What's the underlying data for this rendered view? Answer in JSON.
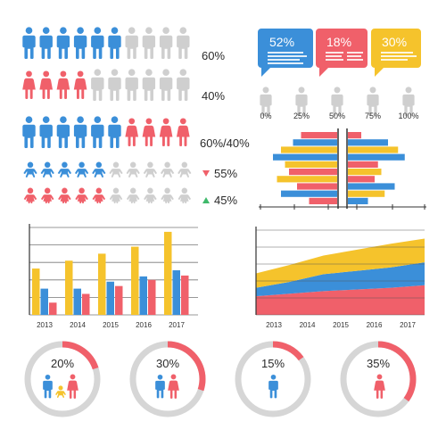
{
  "colors": {
    "blue": "#3b8fd9",
    "red": "#f0606a",
    "yellow": "#f5c32c",
    "gray": "#cfcfcf",
    "dark": "#2b2b2b",
    "green": "#3fb96b"
  },
  "people_rows": [
    {
      "label": "60%",
      "pattern": [
        "blue",
        "blue",
        "blue",
        "blue",
        "blue",
        "blue",
        "gray",
        "gray",
        "gray",
        "gray"
      ],
      "gender": "male"
    },
    {
      "label": "40%",
      "pattern": [
        "red",
        "red",
        "red",
        "red",
        "gray",
        "gray",
        "gray",
        "gray",
        "gray",
        "gray"
      ],
      "gender": "female"
    },
    {
      "label": "60%/40%",
      "pattern": [
        "blue",
        "blue",
        "blue",
        "blue",
        "blue",
        "blue",
        "red",
        "red",
        "red",
        "red"
      ],
      "gender": "mixed"
    }
  ],
  "kids_rows": [
    {
      "label": "55%",
      "trend": "down",
      "colored": 5
    },
    {
      "label": "45%",
      "trend": "up",
      "colored": 5
    }
  ],
  "callouts": [
    {
      "value": "52%",
      "color": "blue"
    },
    {
      "value": "18%",
      "color": "red"
    },
    {
      "value": "30%",
      "color": "yellow"
    }
  ],
  "fill_levels": [
    {
      "label": "0%",
      "fraction": 0
    },
    {
      "label": "25%",
      "fraction": 0.25
    },
    {
      "label": "50%",
      "fraction": 0.5
    },
    {
      "label": "75%",
      "fraction": 0.75
    },
    {
      "label": "100%",
      "fraction": 1
    }
  ],
  "chart_data": [
    {
      "type": "bar",
      "orientation": "horizontal-diverging",
      "rows": 8,
      "series": [
        {
          "color": "red",
          "left": [
            0,
            45,
            0,
            30,
            0,
            50,
            0,
            45
          ],
          "right": [
            0,
            0,
            0,
            0,
            0,
            0,
            0,
            0
          ]
        },
        {
          "color": "yellow",
          "left": [
            0,
            0,
            70,
            0,
            65,
            0,
            75,
            0
          ],
          "right": [
            0,
            0,
            0,
            0,
            0,
            0,
            0,
            0
          ]
        }
      ],
      "left": [
        {
          "color": "red",
          "value": 45
        },
        {
          "color": "blue",
          "value": 55
        },
        {
          "color": "yellow",
          "value": 70
        },
        {
          "color": "blue",
          "value": 80
        },
        {
          "color": "yellow",
          "value": 65
        },
        {
          "color": "red",
          "value": 60
        },
        {
          "color": "yellow",
          "value": 75
        },
        {
          "color": "red",
          "value": 50
        },
        {
          "color": "blue",
          "value": 70
        },
        {
          "color": "red",
          "value": 35
        }
      ],
      "right": [
        {
          "color": "red",
          "value": 20
        },
        {
          "color": "blue",
          "value": 60
        },
        {
          "color": "yellow",
          "value": 75
        },
        {
          "color": "blue",
          "value": 85
        },
        {
          "color": "red",
          "value": 45
        },
        {
          "color": "yellow",
          "value": 50
        },
        {
          "color": "red",
          "value": 40
        },
        {
          "color": "blue",
          "value": 70
        },
        {
          "color": "yellow",
          "value": 55
        },
        {
          "color": "blue",
          "value": 30
        }
      ]
    },
    {
      "type": "bar",
      "categories": [
        "2013",
        "2014",
        "2015",
        "2016",
        "2017"
      ],
      "series": [
        {
          "color": "yellow",
          "values": [
            53,
            62,
            70,
            78,
            95
          ]
        },
        {
          "color": "blue",
          "values": [
            30,
            30,
            38,
            44,
            51
          ]
        },
        {
          "color": "red",
          "values": [
            14,
            24,
            33,
            40,
            45
          ]
        }
      ],
      "ylim": [
        0,
        100
      ],
      "grid": true
    },
    {
      "type": "area",
      "stacked": true,
      "categories": [
        "2013",
        "2014",
        "2015",
        "2016",
        "2017"
      ],
      "x": [
        0,
        1,
        2,
        3,
        4,
        5
      ],
      "series": [
        {
          "color": "red",
          "values": [
            22,
            25,
            28,
            30,
            32,
            35
          ]
        },
        {
          "color": "blue",
          "values": [
            10,
            14,
            20,
            22,
            24,
            27
          ]
        },
        {
          "color": "yellow",
          "values": [
            17,
            20,
            22,
            25,
            28,
            28
          ]
        }
      ],
      "ylim": [
        0,
        100
      ],
      "grid": true
    },
    {
      "type": "pie",
      "donuts": [
        {
          "label": "20%",
          "value": 20,
          "figures": [
            "male-blue",
            "child-yellow",
            "female-red"
          ]
        },
        {
          "label": "30%",
          "value": 30,
          "figures": [
            "male-blue",
            "female-red"
          ]
        },
        {
          "label": "15%",
          "value": 15,
          "figures": [
            "male-blue"
          ]
        },
        {
          "label": "35%",
          "value": 35,
          "figures": [
            "female-red"
          ]
        }
      ]
    }
  ]
}
